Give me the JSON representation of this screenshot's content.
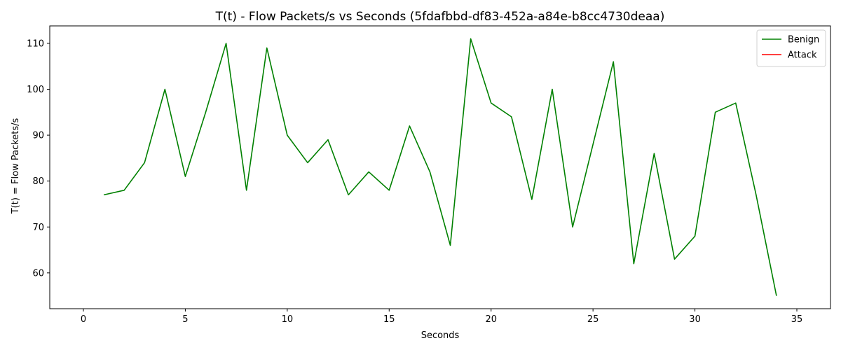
{
  "chart_data": {
    "type": "line",
    "title": "T(t) - Flow Packets/s vs Seconds (5fdafbbd-df83-452a-a84e-b8cc4730deaa)",
    "xlabel": "Seconds",
    "ylabel": "T(t) = Flow Packets/s",
    "xlim": [
      -1.65,
      36.65
    ],
    "ylim": [
      52.2,
      113.8
    ],
    "xticks": [
      0,
      5,
      10,
      15,
      20,
      25,
      30,
      35
    ],
    "yticks": [
      60,
      70,
      80,
      90,
      100,
      110
    ],
    "grid": false,
    "legend_position": "top-right",
    "series": [
      {
        "name": "Benign",
        "color": "#008000",
        "x": [
          1,
          2,
          3,
          4,
          5,
          6,
          7,
          8,
          9,
          10,
          11,
          12,
          13,
          14,
          15,
          16,
          17,
          18,
          19,
          20,
          21,
          22,
          23,
          24,
          25,
          26,
          27,
          28,
          29,
          30,
          31,
          32,
          33,
          34
        ],
        "values": [
          77,
          78,
          84,
          100,
          81,
          95,
          110,
          78,
          109,
          90,
          84,
          89,
          77,
          82,
          78,
          92,
          82,
          66,
          111,
          97,
          94,
          76,
          100,
          70,
          88,
          106,
          62,
          86,
          63,
          68,
          95,
          97,
          77,
          55
        ]
      },
      {
        "name": "Attack",
        "color": "#ff0000",
        "x": [],
        "values": []
      }
    ]
  }
}
